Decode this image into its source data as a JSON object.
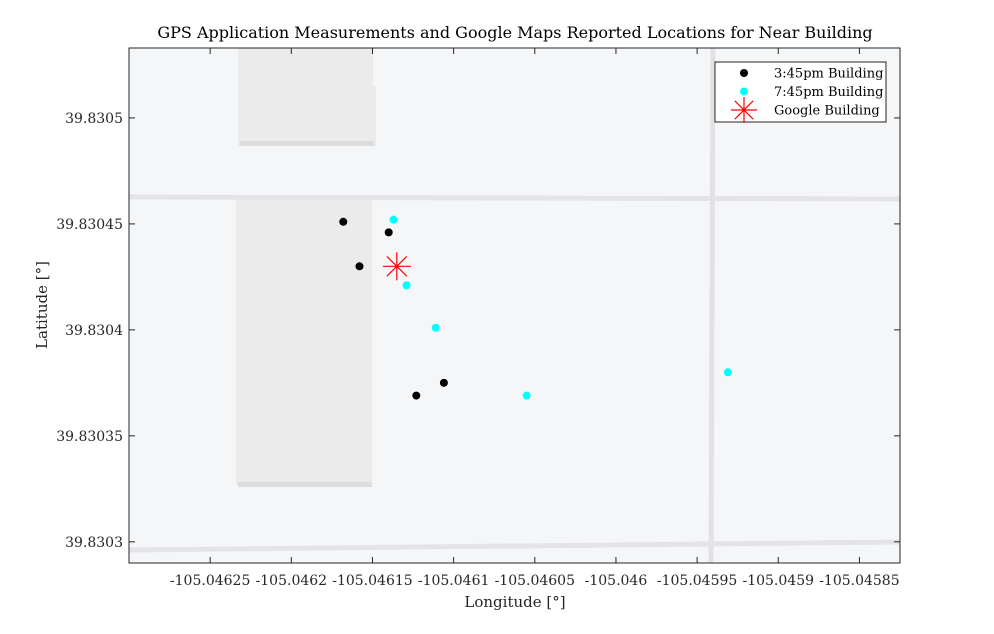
{
  "chart_data": {
    "type": "scatter",
    "title": "GPS Application Measurements and Google Maps Reported Locations for Near Building",
    "xlabel": "Longitude [°]",
    "ylabel": "Latitude [°]",
    "xlim": [
      -105.0463,
      -105.045825
    ],
    "ylim": [
      39.83029,
      39.830533
    ],
    "x_ticks": [
      "-105.04625",
      "-105.0462",
      "-105.04615",
      "-105.0461",
      "-105.04605",
      "-105.046",
      "-105.04595",
      "-105.0459",
      "-105.04585"
    ],
    "x_tick_values": [
      -105.04625,
      -105.0462,
      -105.04615,
      -105.0461,
      -105.04605,
      -105.046,
      -105.04595,
      -105.0459,
      -105.04585
    ],
    "y_ticks": [
      "39.8303",
      "39.83035",
      "39.8304",
      "39.83045",
      "39.8305"
    ],
    "y_tick_values": [
      39.8303,
      39.83035,
      39.8304,
      39.83045,
      39.8305
    ],
    "grid": false,
    "legend_position": "top-right",
    "series": [
      {
        "name": "3:45pm Building",
        "marker": "dot",
        "color": "#000000",
        "points": [
          [
            -105.046168,
            39.830451
          ],
          [
            -105.046158,
            39.83043
          ],
          [
            -105.04614,
            39.830446
          ],
          [
            -105.046123,
            39.830369
          ],
          [
            -105.046106,
            39.830375
          ]
        ]
      },
      {
        "name": "7:45pm Building",
        "marker": "dot",
        "color": "#00ffff",
        "points": [
          [
            -105.046137,
            39.830452
          ],
          [
            -105.046129,
            39.830421
          ],
          [
            -105.046111,
            39.830401
          ],
          [
            -105.046055,
            39.830369
          ],
          [
            -105.045931,
            39.83038
          ]
        ]
      },
      {
        "name": "Google Building",
        "marker": "star",
        "color": "#ff0000",
        "points": [
          [
            -105.046135,
            39.83043
          ]
        ]
      }
    ]
  }
}
